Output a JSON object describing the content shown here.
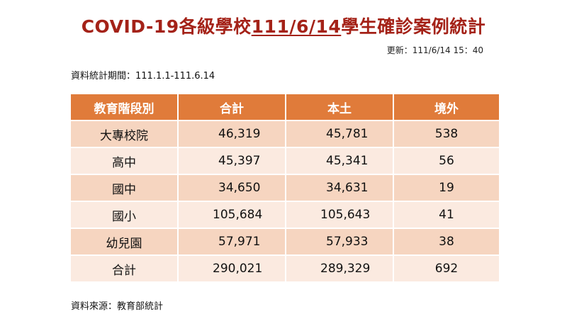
{
  "title": {
    "prefix": "COVID-19各級學校",
    "date": "111/6/14",
    "suffix": "學生確診案例統計"
  },
  "updated": "更新：111/6/14  15：40",
  "period": "資料統計期間：111.1.1-111.6.14",
  "source": "資料來源：教育部統計",
  "colors": {
    "title": "#a42218",
    "header_bg": "#e07b3a",
    "row_dark": "#f6d5c0",
    "row_light": "#fbeae0"
  },
  "table": {
    "headers": [
      "教育階段別",
      "合計",
      "本土",
      "境外"
    ],
    "rows": [
      [
        "大專校院",
        "46,319",
        "45,781",
        "538"
      ],
      [
        "高中",
        "45,397",
        "45,341",
        "56"
      ],
      [
        "國中",
        "34,650",
        "34,631",
        "19"
      ],
      [
        "國小",
        "105,684",
        "105,643",
        "41"
      ],
      [
        "幼兒園",
        "57,971",
        "57,933",
        "38"
      ],
      [
        "合計",
        "290,021",
        "289,329",
        "692"
      ]
    ]
  }
}
